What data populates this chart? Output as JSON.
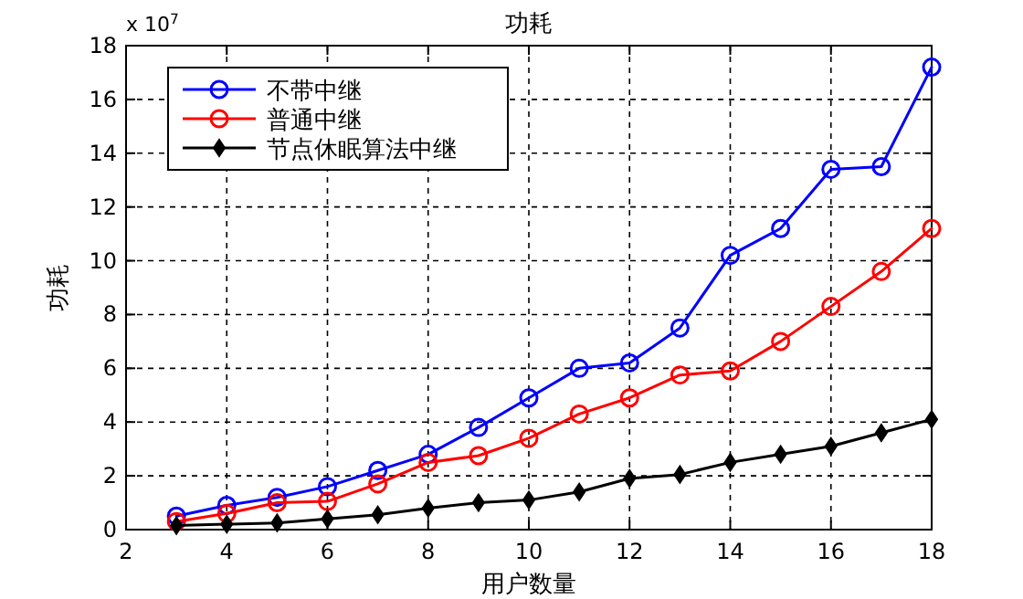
{
  "chart_data": {
    "type": "line",
    "title": "功耗",
    "xlabel": "用户数量",
    "ylabel": "功耗",
    "annotations": [
      "x 10$^{7}$"
    ],
    "x": [
      3,
      4,
      5,
      6,
      7,
      8,
      9,
      10,
      11,
      12,
      13,
      14,
      15,
      16,
      17,
      18
    ],
    "series": [
      {
        "name": "不带中继",
        "color": "#0000ff",
        "marker": "circle",
        "values": [
          0.5,
          0.9,
          1.2,
          1.6,
          2.2,
          2.8,
          3.8,
          4.9,
          6.0,
          6.2,
          7.5,
          10.2,
          11.2,
          13.4,
          13.5,
          17.2
        ]
      },
      {
        "name": "普通中继",
        "color": "#ff0000",
        "marker": "circle",
        "values": [
          0.3,
          0.6,
          1.0,
          1.05,
          1.7,
          2.5,
          2.75,
          3.4,
          4.3,
          4.9,
          5.75,
          5.9,
          7.0,
          8.3,
          9.6,
          11.2
        ]
      },
      {
        "name": "节点休眠算法中继",
        "color": "#000000",
        "marker": "diamond",
        "values": [
          0.15,
          0.2,
          0.25,
          0.4,
          0.55,
          0.8,
          1.0,
          1.1,
          1.4,
          1.9,
          2.05,
          2.5,
          2.8,
          3.1,
          3.6,
          4.1
        ]
      }
    ],
    "xlim": [
      2,
      18
    ],
    "xticks": [
      2,
      4,
      6,
      8,
      10,
      12,
      14,
      16,
      18
    ],
    "ylim": [
      0,
      18
    ],
    "yticks": [
      0,
      2,
      4,
      6,
      8,
      10,
      12,
      14,
      16,
      18
    ],
    "grid": true,
    "legend": "top left",
    "line_style": "solid"
  }
}
